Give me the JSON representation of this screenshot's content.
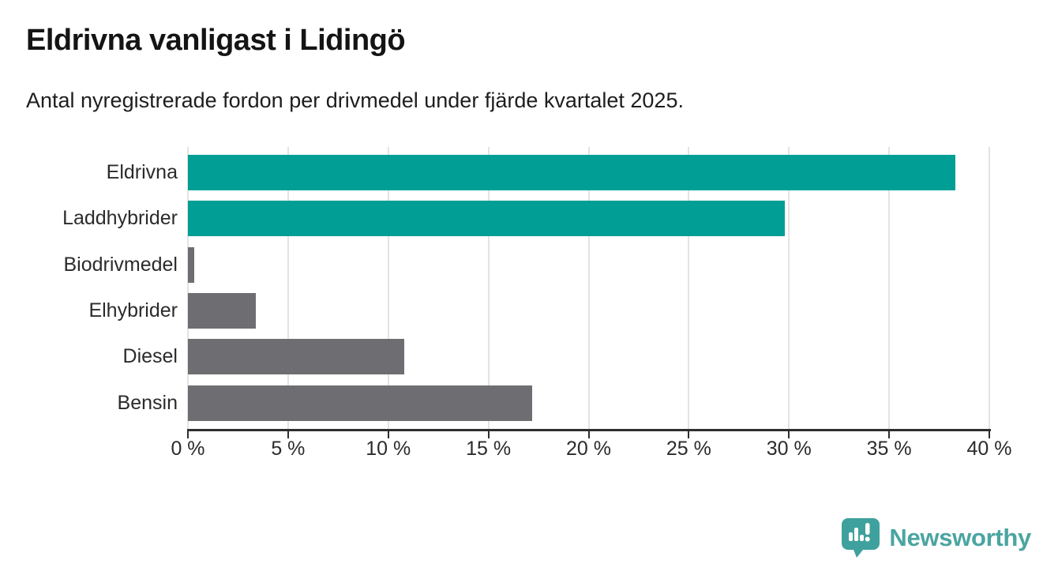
{
  "header": {
    "title": "Eldrivna vanligast i Lidingö",
    "subtitle": "Antal nyregistrerade fordon per drivmedel under fjärde kvartalet 2025."
  },
  "chart_data": {
    "type": "bar",
    "orientation": "horizontal",
    "title": "Eldrivna vanligast i Lidingö",
    "subtitle": "Antal nyregistrerade fordon per drivmedel under fjärde kvartalet 2025.",
    "categories": [
      "Eldrivna",
      "Laddhybrider",
      "Biodrivmedel",
      "Elhybrider",
      "Diesel",
      "Bensin"
    ],
    "values": [
      38.3,
      29.8,
      0.3,
      3.4,
      10.8,
      17.2
    ],
    "unit": "%",
    "bar_colors": [
      "#009E94",
      "#009E94",
      "#6E6D71",
      "#6E6D71",
      "#6E6D71",
      "#6E6D71"
    ],
    "xlim": [
      0,
      40
    ],
    "x_ticks": [
      0,
      5,
      10,
      15,
      20,
      25,
      30,
      35,
      40
    ],
    "x_tick_labels": [
      "0 %",
      "5 %",
      "10 %",
      "15 %",
      "20 %",
      "25 %",
      "30 %",
      "35 %",
      "40 %"
    ],
    "grid": "vertical-gridlines-on",
    "legend": "none",
    "xlabel": "",
    "ylabel": ""
  },
  "colors": {
    "highlight_teal": "#009E94",
    "bar_gray": "#6E6D71",
    "gridline": "#E3E3E3",
    "axis": "#2E2E2E",
    "brand_teal": "#4AA5A1",
    "badge_teal": "#3FA19D"
  },
  "footer": {
    "brand_name": "Newsworthy",
    "logo_icon": "newsworthy-pin-chart-icon"
  }
}
